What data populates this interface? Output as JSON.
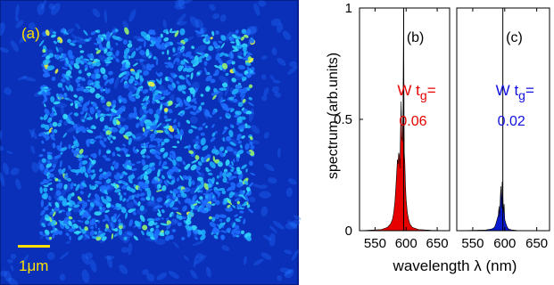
{
  "panel_a": {
    "label": "(a)",
    "scale_bar_label": "1μm",
    "background_color": "#0a2fb8",
    "speckle_colors": [
      "#1f6fff",
      "#20b4ff",
      "#35e0ff",
      "#9cff6b",
      "#f3ff3a"
    ],
    "scale_bar_color": "#ffe000",
    "label_color": "#ffe000"
  },
  "chart_data": [
    {
      "type": "area",
      "panel_label": "(b)",
      "xlabel": "",
      "ylabel": "spectrum (arb.units)",
      "xlim": [
        525,
        670
      ],
      "ylim": [
        0,
        1
      ],
      "xticks": [
        550,
        600,
        650
      ],
      "yticks": [
        0,
        0.5,
        1
      ],
      "ytick_labels": [
        "0",
        "0.5",
        "1"
      ],
      "reference_line_x": 596,
      "fill_color": "#e60000",
      "annotation": {
        "text_main": "W t",
        "text_sub": "g",
        "text_eq": "=",
        "value": "0.06",
        "color": "#e60000"
      },
      "x": [
        525,
        560,
        570,
        575,
        578,
        580,
        582,
        584,
        586,
        587,
        588,
        589,
        590,
        591,
        592,
        593,
        594,
        595,
        596,
        597,
        598,
        599,
        600,
        602,
        604,
        606,
        610,
        620,
        640,
        670
      ],
      "y": [
        0.0,
        0.005,
        0.015,
        0.03,
        0.05,
        0.08,
        0.13,
        0.22,
        0.32,
        0.3,
        0.35,
        0.34,
        0.28,
        0.45,
        0.58,
        0.42,
        0.4,
        0.55,
        0.99,
        0.35,
        0.3,
        0.2,
        0.14,
        0.08,
        0.05,
        0.03,
        0.015,
        0.005,
        0.002,
        0.0
      ]
    },
    {
      "type": "area",
      "panel_label": "(c)",
      "xlabel": "",
      "ylabel": "",
      "xlim": [
        525,
        670
      ],
      "ylim": [
        0,
        1
      ],
      "xticks": [
        550,
        600,
        650
      ],
      "reference_line_x": 597,
      "fill_color": "#0a1ad0",
      "annotation": {
        "text_main": "W t",
        "text_sub": "g",
        "text_eq": "=",
        "value": "0.02",
        "color": "#1010e0"
      },
      "x": [
        525,
        570,
        580,
        584,
        586,
        588,
        590,
        591,
        592,
        593,
        594,
        595,
        596,
        597,
        598,
        599,
        600,
        601,
        602,
        604,
        606,
        610,
        620,
        670
      ],
      "y": [
        0.0,
        0.003,
        0.008,
        0.015,
        0.03,
        0.05,
        0.07,
        0.11,
        0.06,
        0.14,
        0.2,
        0.1,
        0.22,
        0.16,
        0.08,
        0.12,
        0.05,
        0.04,
        0.03,
        0.015,
        0.008,
        0.004,
        0.001,
        0.0
      ]
    }
  ],
  "shared_xlabel": "wavelength λ (nm)"
}
